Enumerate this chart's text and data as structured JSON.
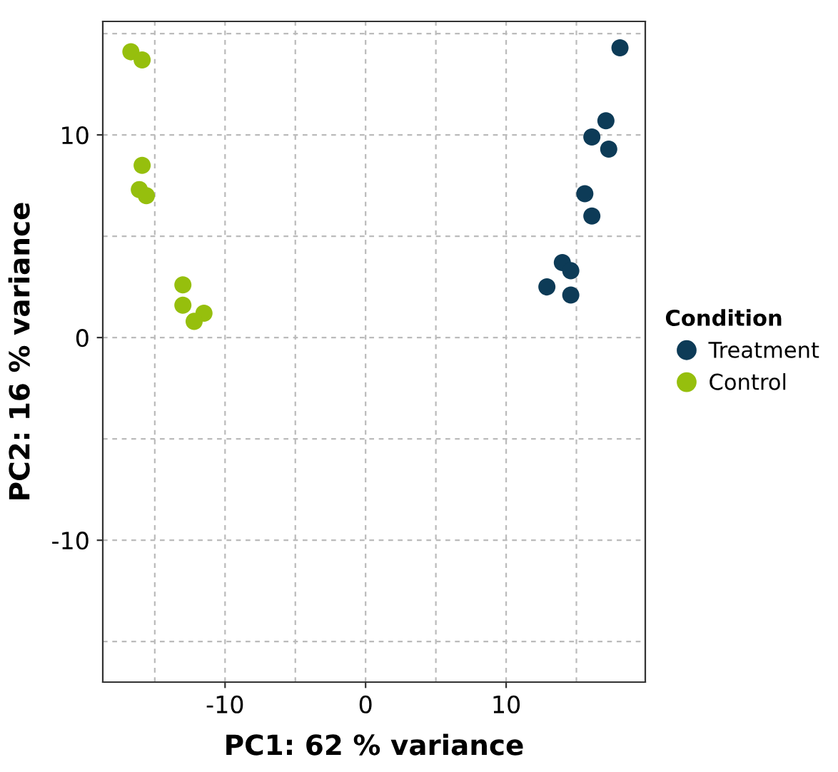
{
  "chart_data": {
    "type": "scatter",
    "xlabel": "PC1: 62 % variance",
    "ylabel": "PC2: 16 % variance",
    "legend_title": "Condition",
    "legend": "right",
    "grid": true,
    "marker": "circle",
    "xlim": [
      -18.7,
      19.9
    ],
    "ylim": [
      -17.0,
      15.6
    ],
    "xticks": [
      {
        "value": -15,
        "label": null
      },
      -10,
      {
        "value": -5,
        "label": null
      },
      0,
      {
        "value": 5,
        "label": null
      },
      10,
      {
        "value": 15,
        "label": null
      }
    ],
    "yticks": [
      {
        "value": -15,
        "label": null
      },
      -10,
      {
        "value": -5,
        "label": null
      },
      0,
      {
        "value": 5,
        "label": null
      },
      10,
      {
        "value": 15,
        "label": null
      }
    ],
    "series": [
      {
        "name": "Treatment",
        "color": "#0d3b57",
        "x": [
          18.1,
          17.1,
          16.1,
          17.3,
          15.6,
          16.1,
          14.0,
          14.6,
          12.9,
          14.6
        ],
        "values": [
          14.3,
          10.7,
          9.9,
          9.3,
          7.1,
          6.0,
          3.7,
          3.3,
          2.5,
          2.1
        ]
      },
      {
        "name": "Control",
        "color": "#96bf0d",
        "x": [
          -16.7,
          -15.9,
          -15.9,
          -16.1,
          -15.6,
          -13.0,
          -13.0,
          -11.5,
          -12.2
        ],
        "values": [
          14.1,
          13.7,
          8.5,
          7.3,
          7.0,
          2.6,
          1.6,
          1.2,
          0.8
        ]
      }
    ]
  }
}
